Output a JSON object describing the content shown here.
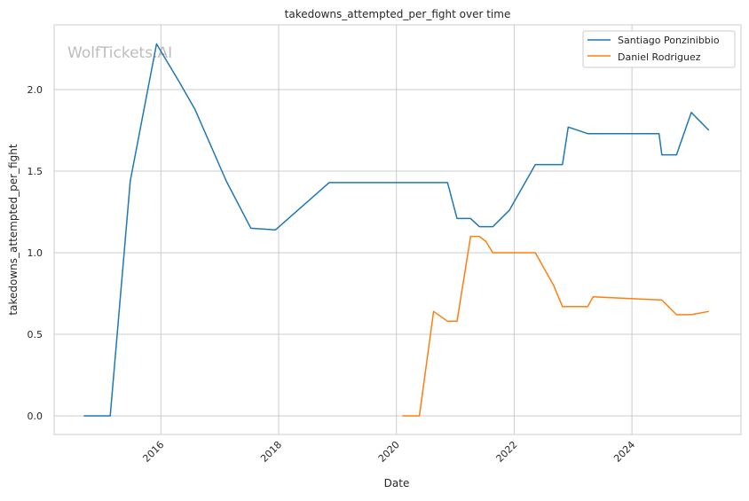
{
  "watermark": "WolfTickets.AI",
  "chart_data": {
    "type": "line",
    "title": "takedowns_attempted_per_fight over time",
    "xlabel": "Date",
    "ylabel": "takedowns_attempted_per_fight",
    "xlim": [
      "2014-04-01",
      "2025-10-01"
    ],
    "ylim": [
      -0.11,
      2.4
    ],
    "x_ticks": [
      "2016",
      "2018",
      "2020",
      "2022",
      "2024"
    ],
    "y_ticks": [
      "0.0",
      "0.5",
      "1.0",
      "1.5",
      "2.0"
    ],
    "grid": true,
    "legend_position": "top-right",
    "series": [
      {
        "name": "Santiago Ponzinibbio",
        "color": "#1f77b4",
        "points": [
          [
            "2014-09-10",
            0.0
          ],
          [
            "2015-02-21",
            0.0
          ],
          [
            "2015-06-25",
            1.44
          ],
          [
            "2015-12-05",
            2.28
          ],
          [
            "2016-04-22",
            2.05
          ],
          [
            "2016-07-30",
            1.88
          ],
          [
            "2017-02-10",
            1.44
          ],
          [
            "2017-07-13",
            1.15
          ],
          [
            "2017-12-13",
            1.14
          ],
          [
            "2018-11-10",
            1.43
          ],
          [
            "2020-11-14",
            1.43
          ],
          [
            "2021-01-12",
            1.21
          ],
          [
            "2021-04-06",
            1.21
          ],
          [
            "2021-05-30",
            1.16
          ],
          [
            "2021-08-22",
            1.16
          ],
          [
            "2021-12-02",
            1.26
          ],
          [
            "2022-05-12",
            1.54
          ],
          [
            "2022-10-27",
            1.54
          ],
          [
            "2022-12-02",
            1.77
          ],
          [
            "2023-04-02",
            1.73
          ],
          [
            "2024-06-17",
            1.73
          ],
          [
            "2024-07-05",
            1.6
          ],
          [
            "2024-10-04",
            1.6
          ],
          [
            "2025-01-04",
            1.86
          ],
          [
            "2025-04-23",
            1.75
          ]
        ]
      },
      {
        "name": "Daniel Rodriguez",
        "color": "#ff7f0e",
        "points": [
          [
            "2020-02-07",
            0.0
          ],
          [
            "2020-05-23",
            0.0
          ],
          [
            "2020-08-19",
            0.64
          ],
          [
            "2020-11-14",
            0.58
          ],
          [
            "2021-01-12",
            0.58
          ],
          [
            "2021-04-06",
            1.1
          ],
          [
            "2021-05-30",
            1.1
          ],
          [
            "2021-07-09",
            1.07
          ],
          [
            "2021-08-22",
            1.0
          ],
          [
            "2022-05-12",
            1.0
          ],
          [
            "2022-09-02",
            0.8
          ],
          [
            "2022-10-27",
            0.67
          ],
          [
            "2023-04-02",
            0.67
          ],
          [
            "2023-05-05",
            0.73
          ],
          [
            "2024-07-05",
            0.71
          ],
          [
            "2024-10-04",
            0.62
          ],
          [
            "2025-01-04",
            0.62
          ],
          [
            "2025-04-23",
            0.64
          ]
        ]
      }
    ]
  }
}
